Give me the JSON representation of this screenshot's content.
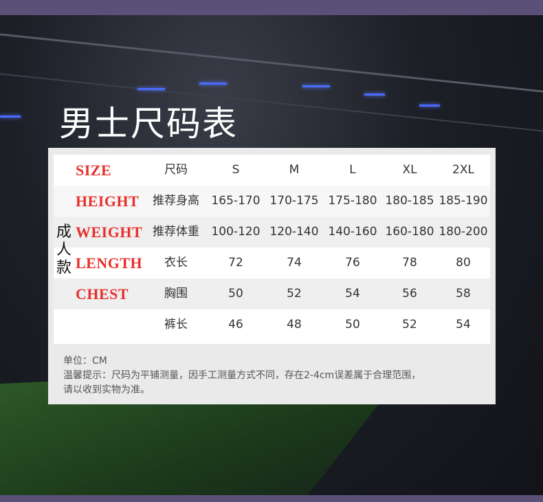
{
  "title": "男士尺码表",
  "colors": {
    "band": "#5b5078",
    "label_red": "#e8302c"
  },
  "table": {
    "group_label": "成人款",
    "columns": [
      "S",
      "M",
      "L",
      "XL",
      "2XL"
    ],
    "rows": [
      {
        "en": "SIZE",
        "label": "尺码",
        "values": [
          "S",
          "M",
          "L",
          "XL",
          "2XL"
        ]
      },
      {
        "en": "HEIGHT",
        "label": "推荐身高",
        "values": [
          "165-170",
          "170-175",
          "175-180",
          "180-185",
          "185-190"
        ]
      },
      {
        "en": "WEIGHT",
        "label": "推荐体重",
        "values": [
          "100-120",
          "120-140",
          "140-160",
          "160-180",
          "180-200"
        ]
      },
      {
        "en": "LENGTH",
        "label": "衣长",
        "values": [
          "72",
          "74",
          "76",
          "78",
          "80"
        ]
      },
      {
        "en": "CHEST",
        "label": "胸围",
        "values": [
          "50",
          "52",
          "54",
          "56",
          "58"
        ]
      },
      {
        "label": "裤长",
        "values": [
          "46",
          "48",
          "50",
          "52",
          "54"
        ]
      }
    ]
  },
  "notes": {
    "unit": "单位：CM",
    "tip_line1": "温馨提示：尺码为平铺测量，因手工测量方式不同，存在2-4cm误差属于合理范围，",
    "tip_line2": "请以收到实物为准。"
  }
}
